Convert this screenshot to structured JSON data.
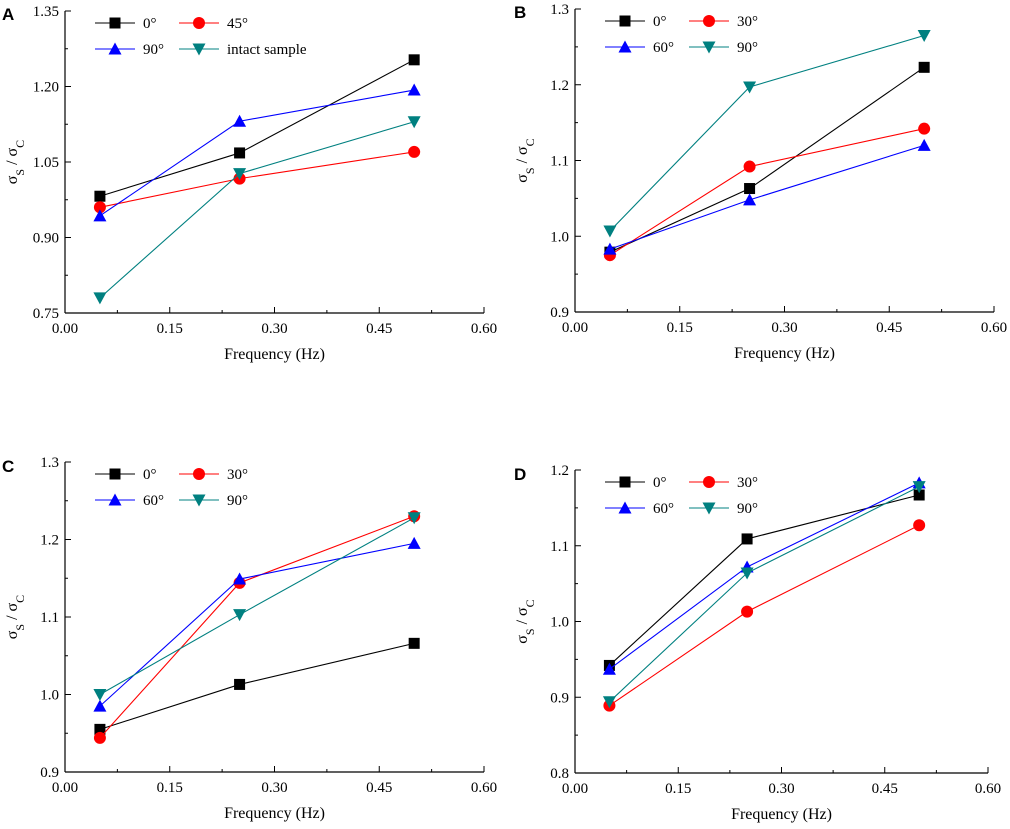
{
  "figure": {
    "xlabel": "Frequency (Hz)",
    "ylabel": {
      "main": "σ",
      "sub_s": "S",
      "slash": " / ",
      "sub_c": "C"
    },
    "x_ticks": [
      "0.00",
      "0.15",
      "0.30",
      "0.45",
      "0.60"
    ]
  },
  "chart_data": [
    {
      "panel": "A",
      "type": "line",
      "title": "",
      "xlabel": "Frequency (Hz)",
      "ylabel": "σS / σC",
      "xlim": [
        0.0,
        0.6
      ],
      "ylim": [
        0.75,
        1.35
      ],
      "y_ticks": [
        "0.75",
        "0.90",
        "1.05",
        "1.20",
        "1.35"
      ],
      "x": [
        0.05,
        0.25,
        0.5
      ],
      "series": [
        {
          "name": "0°",
          "color": "#000000",
          "marker": "square",
          "values": [
            0.982,
            1.068,
            1.253
          ]
        },
        {
          "name": "45°",
          "color": "#ff0000",
          "marker": "circle",
          "values": [
            0.96,
            1.017,
            1.07
          ]
        },
        {
          "name": "90°",
          "color": "#0000ff",
          "marker": "triangle-up",
          "values": [
            0.943,
            1.131,
            1.193
          ]
        },
        {
          "name": "intact  sample",
          "color": "#008080",
          "marker": "triangle-down",
          "values": [
            0.78,
            1.027,
            1.13
          ]
        }
      ],
      "legend": "top-left, 2 columns"
    },
    {
      "panel": "B",
      "type": "line",
      "title": "",
      "xlabel": "Frequency (Hz)",
      "ylabel": "σS / σC",
      "xlim": [
        0.0,
        0.6
      ],
      "ylim": [
        0.9,
        1.3
      ],
      "y_ticks": [
        "0.9",
        "1.0",
        "1.1",
        "1.2",
        "1.3"
      ],
      "x": [
        0.05,
        0.25,
        0.5
      ],
      "series": [
        {
          "name": "0°",
          "color": "#000000",
          "marker": "square",
          "values": [
            0.979,
            1.063,
            1.223
          ]
        },
        {
          "name": "30°",
          "color": "#ff0000",
          "marker": "circle",
          "values": [
            0.975,
            1.092,
            1.142
          ]
        },
        {
          "name": "60°",
          "color": "#0000ff",
          "marker": "triangle-up",
          "values": [
            0.983,
            1.048,
            1.12
          ]
        },
        {
          "name": "90°",
          "color": "#008080",
          "marker": "triangle-down",
          "values": [
            1.007,
            1.197,
            1.265
          ]
        }
      ],
      "legend": "top-left, 2 columns"
    },
    {
      "panel": "C",
      "type": "line",
      "title": "",
      "xlabel": "Frequency (Hz)",
      "ylabel": "σS / σC",
      "xlim": [
        0.0,
        0.6
      ],
      "ylim": [
        0.9,
        1.3
      ],
      "y_ticks": [
        "0.9",
        "1.0",
        "1.1",
        "1.2",
        "1.3"
      ],
      "x": [
        0.05,
        0.25,
        0.5
      ],
      "series": [
        {
          "name": "0°",
          "color": "#000000",
          "marker": "square",
          "values": [
            0.955,
            1.013,
            1.066
          ]
        },
        {
          "name": "30°",
          "color": "#ff0000",
          "marker": "circle",
          "values": [
            0.944,
            1.144,
            1.23
          ]
        },
        {
          "name": "60°",
          "color": "#0000ff",
          "marker": "triangle-up",
          "values": [
            0.985,
            1.149,
            1.195
          ]
        },
        {
          "name": "90°",
          "color": "#008080",
          "marker": "triangle-down",
          "values": [
            1.0,
            1.103,
            1.228
          ]
        }
      ],
      "legend": "top-left, 2 columns"
    },
    {
      "panel": "D",
      "type": "line",
      "title": "",
      "xlabel": "Frequency (Hz)",
      "ylabel": "σS / σC",
      "xlim": [
        0.0,
        0.6
      ],
      "ylim": [
        0.8,
        1.2
      ],
      "y_ticks": [
        "0.8",
        "0.9",
        "1.0",
        "1.1",
        "1.2"
      ],
      "x": [
        0.05,
        0.25,
        0.5
      ],
      "series": [
        {
          "name": "0°",
          "color": "#000000",
          "marker": "square",
          "values": [
            0.942,
            1.109,
            1.167
          ]
        },
        {
          "name": "30°",
          "color": "#ff0000",
          "marker": "circle",
          "values": [
            0.889,
            1.013,
            1.127
          ]
        },
        {
          "name": "60°",
          "color": "#0000ff",
          "marker": "triangle-up",
          "values": [
            0.937,
            1.072,
            1.183
          ]
        },
        {
          "name": "90°",
          "color": "#008080",
          "marker": "triangle-down",
          "values": [
            0.894,
            1.064,
            1.178
          ]
        }
      ],
      "legend": "top-left, 2 columns"
    }
  ]
}
